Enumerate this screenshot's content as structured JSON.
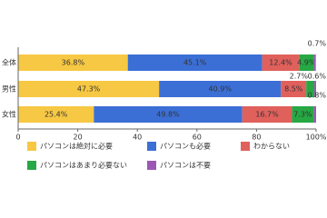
{
  "chart_data": {
    "type": "stacked-bar-horizontal",
    "categories": [
      "全体",
      "男性",
      "女性"
    ],
    "series": [
      {
        "name": "パソコンは絶対に必要",
        "color": "#f7c843",
        "values": [
          36.8,
          47.3,
          25.4
        ],
        "value_labels": [
          "36.8%",
          "47.3%",
          "25.4%"
        ]
      },
      {
        "name": "パソコンも必要",
        "color": "#3b6fd6",
        "values": [
          45.1,
          40.9,
          49.8
        ],
        "value_labels": [
          "45.1%",
          "40.9%",
          "49.8%"
        ]
      },
      {
        "name": "わからない",
        "color": "#e0605c",
        "values": [
          12.4,
          8.5,
          16.7
        ],
        "value_labels": [
          "12.4%",
          "8.5%",
          "16.7%"
        ]
      },
      {
        "name": "パソコンはあまり必要ない",
        "color": "#27a844",
        "values": [
          4.9,
          2.7,
          7.3
        ],
        "value_labels": [
          "4.9%",
          "2.7%",
          "7.3%"
        ]
      },
      {
        "name": "パソコンは不要",
        "color": "#9a58b4",
        "values": [
          0.7,
          0.6,
          0.8
        ],
        "value_labels": [
          "0.7%",
          "0.6%",
          "0.8%"
        ]
      }
    ],
    "xlim": [
      0,
      100
    ],
    "xticks": [
      0,
      20,
      40,
      60,
      80,
      {
        "value": 100,
        "label": "100%"
      }
    ]
  }
}
